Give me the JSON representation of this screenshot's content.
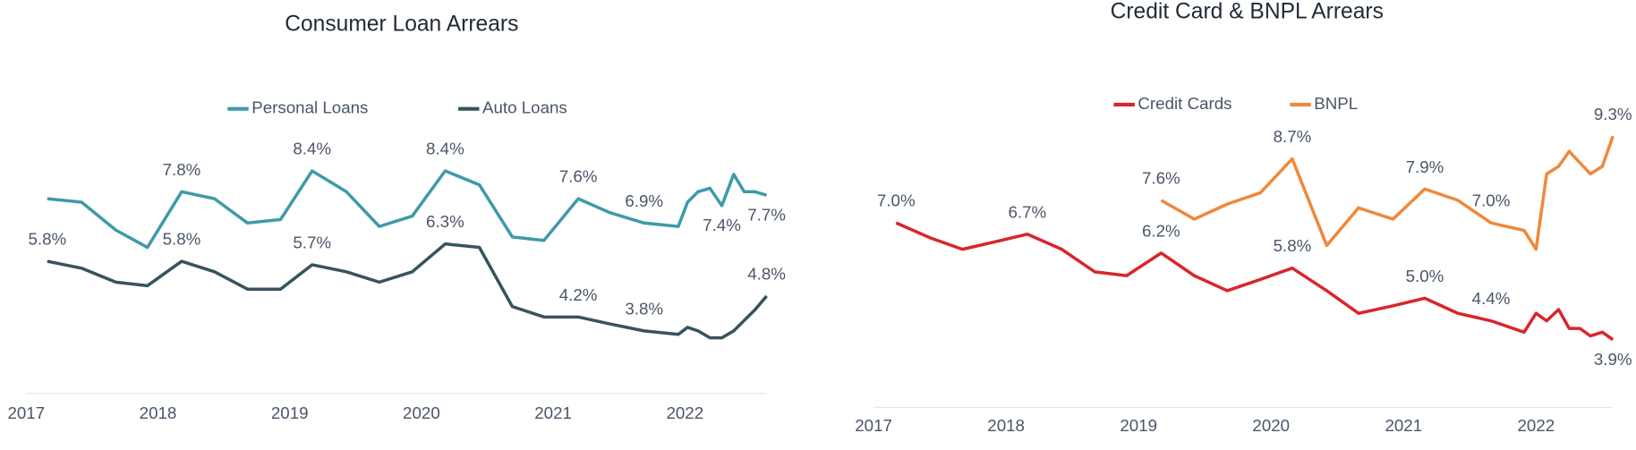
{
  "chart_data": [
    {
      "type": "line",
      "title": "Consumer Loan Arrears",
      "x": [
        2017.16,
        2017.42,
        2017.68,
        2017.92,
        2018.18,
        2018.43,
        2018.68,
        2018.93,
        2019.17,
        2019.43,
        2019.68,
        2019.93,
        2020.18,
        2020.44,
        2020.69,
        2020.93,
        2021.19,
        2021.43,
        2021.69,
        2021.95,
        2022.02,
        2022.1,
        2022.19,
        2022.28,
        2022.37,
        2022.45,
        2022.53,
        2022.62
      ],
      "xlim": [
        2017,
        2022.62
      ],
      "xticks": [
        2017,
        2018,
        2019,
        2020,
        2021,
        2022
      ],
      "ylim": [
        2,
        9.5
      ],
      "series": [
        {
          "name": "Personal Loans",
          "color": "#3e9aa9",
          "values": [
            7.6,
            7.5,
            6.7,
            6.2,
            7.8,
            7.6,
            6.9,
            7.0,
            8.4,
            7.8,
            6.8,
            7.1,
            8.4,
            8.0,
            6.5,
            6.4,
            7.6,
            7.2,
            6.9,
            6.8,
            7.5,
            7.8,
            7.9,
            7.4,
            8.3,
            7.8,
            7.8,
            7.7
          ],
          "value_labels": [
            null,
            null,
            null,
            null,
            "7.8%",
            null,
            null,
            null,
            "8.4%",
            null,
            null,
            null,
            "8.4%",
            null,
            null,
            null,
            "7.6%",
            null,
            "6.9%",
            null,
            null,
            null,
            null,
            "7.4%",
            null,
            null,
            null,
            "7.7%"
          ]
        },
        {
          "name": "Auto Loans",
          "color": "#37535d",
          "values": [
            5.8,
            5.6,
            5.2,
            5.1,
            5.8,
            5.5,
            5.0,
            5.0,
            5.7,
            5.5,
            5.2,
            5.5,
            6.3,
            6.2,
            4.5,
            4.2,
            4.2,
            4.0,
            3.8,
            3.7,
            3.9,
            3.8,
            3.6,
            3.6,
            3.8,
            4.1,
            4.4,
            4.8
          ],
          "value_labels": [
            "5.8%",
            null,
            null,
            null,
            "5.8%",
            null,
            null,
            null,
            "5.7%",
            null,
            null,
            null,
            "6.3%",
            null,
            null,
            null,
            "4.2%",
            null,
            "3.8%",
            null,
            null,
            null,
            null,
            null,
            null,
            null,
            null,
            "4.8%"
          ]
        }
      ]
    },
    {
      "type": "line",
      "title": "Credit Card & BNPL Arrears",
      "x": [
        2017.17,
        2017.43,
        2017.67,
        2017.92,
        2018.16,
        2018.42,
        2018.67,
        2018.91,
        2019.17,
        2019.42,
        2019.67,
        2019.92,
        2020.16,
        2020.42,
        2020.66,
        2020.92,
        2021.16,
        2021.41,
        2021.66,
        2021.91,
        2022.0,
        2022.08,
        2022.17,
        2022.25,
        2022.33,
        2022.41,
        2022.5,
        2022.58
      ],
      "xlim": [
        2017,
        2022.58
      ],
      "xticks": [
        2017,
        2018,
        2019,
        2020,
        2021,
        2022
      ],
      "ylim": [
        2.1,
        9.6
      ],
      "series": [
        {
          "name": "Credit Cards",
          "color": "#d8262b",
          "values": [
            7.0,
            6.6,
            6.3,
            6.5,
            6.7,
            6.3,
            5.7,
            5.6,
            6.2,
            5.6,
            5.2,
            5.5,
            5.8,
            5.2,
            4.6,
            4.8,
            5.0,
            4.6,
            4.4,
            4.1,
            4.6,
            4.4,
            4.7,
            4.2,
            4.2,
            4.0,
            4.1,
            3.9
          ],
          "value_labels": [
            "7.0%",
            null,
            null,
            null,
            "6.7%",
            null,
            null,
            null,
            "6.2%",
            null,
            null,
            null,
            "5.8%",
            null,
            null,
            null,
            "5.0%",
            null,
            "4.4%",
            null,
            null,
            null,
            null,
            null,
            null,
            null,
            null,
            "3.9%"
          ]
        },
        {
          "name": "BNPL",
          "color": "#f0883a",
          "values": [
            null,
            null,
            null,
            null,
            null,
            null,
            null,
            null,
            7.6,
            7.1,
            7.5,
            7.8,
            8.7,
            6.4,
            7.4,
            7.1,
            7.9,
            7.6,
            7.0,
            6.8,
            6.3,
            8.3,
            8.5,
            8.9,
            8.6,
            8.3,
            8.5,
            9.3
          ],
          "value_labels": [
            null,
            null,
            null,
            null,
            null,
            null,
            null,
            null,
            "7.6%",
            null,
            null,
            null,
            "8.7%",
            null,
            null,
            null,
            "7.9%",
            null,
            "7.0%",
            null,
            null,
            null,
            null,
            null,
            null,
            null,
            null,
            "9.3%"
          ]
        }
      ]
    }
  ]
}
